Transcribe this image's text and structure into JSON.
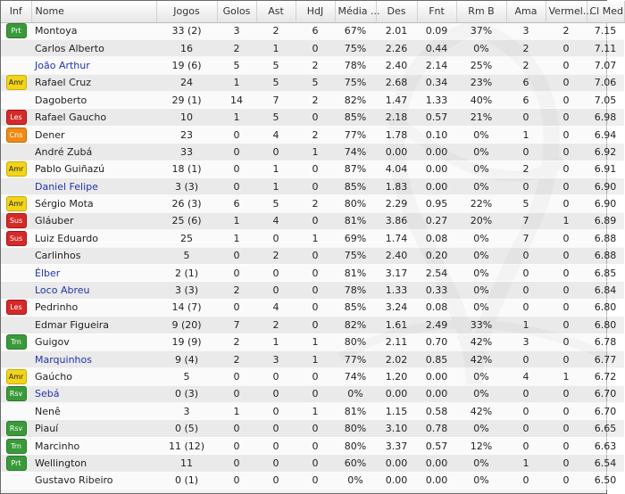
{
  "columns": [
    "Inf",
    "Nome",
    "Jogos",
    "Golos",
    "Ast",
    "HdJ",
    "Média ...",
    "Des",
    "Fnt",
    "Rm B",
    "Ama",
    "Vermel...",
    "Cl Med"
  ],
  "players": [
    {
      "inf": "Prt",
      "nome": "Montoya",
      "link": false,
      "jogos": "33 (2)",
      "golos": "3",
      "ast": "2",
      "hdj": "6",
      "media": "67%",
      "des": "2.01",
      "fnt": "0.09",
      "rmb": "37%",
      "ama": "3",
      "verm": "2",
      "clmed": "7.15"
    },
    {
      "inf": "",
      "nome": "Carlos Alberto",
      "link": false,
      "jogos": "16",
      "golos": "2",
      "ast": "1",
      "hdj": "0",
      "media": "75%",
      "des": "2.26",
      "fnt": "0.44",
      "rmb": "0%",
      "ama": "2",
      "verm": "0",
      "clmed": "7.11"
    },
    {
      "inf": "",
      "nome": "João Arthur",
      "link": true,
      "jogos": "19 (6)",
      "golos": "5",
      "ast": "5",
      "hdj": "2",
      "media": "78%",
      "des": "2.40",
      "fnt": "2.14",
      "rmb": "25%",
      "ama": "2",
      "verm": "0",
      "clmed": "7.07"
    },
    {
      "inf": "Amr",
      "nome": "Rafael Cruz",
      "link": false,
      "jogos": "24",
      "golos": "1",
      "ast": "5",
      "hdj": "5",
      "media": "75%",
      "des": "2.68",
      "fnt": "0.34",
      "rmb": "23%",
      "ama": "6",
      "verm": "0",
      "clmed": "7.06"
    },
    {
      "inf": "",
      "nome": "Dagoberto",
      "link": false,
      "jogos": "29 (1)",
      "golos": "14",
      "ast": "7",
      "hdj": "2",
      "media": "82%",
      "des": "1.47",
      "fnt": "1.33",
      "rmb": "40%",
      "ama": "6",
      "verm": "0",
      "clmed": "7.05"
    },
    {
      "inf": "Les",
      "nome": "Rafael Gaucho",
      "link": false,
      "jogos": "10",
      "golos": "1",
      "ast": "5",
      "hdj": "0",
      "media": "85%",
      "des": "2.18",
      "fnt": "0.57",
      "rmb": "21%",
      "ama": "0",
      "verm": "0",
      "clmed": "6.98"
    },
    {
      "inf": "Cns",
      "nome": "Dener",
      "link": false,
      "jogos": "23",
      "golos": "0",
      "ast": "4",
      "hdj": "2",
      "media": "77%",
      "des": "1.78",
      "fnt": "0.10",
      "rmb": "0%",
      "ama": "1",
      "verm": "0",
      "clmed": "6.94"
    },
    {
      "inf": "",
      "nome": "André Zubá",
      "link": false,
      "jogos": "33",
      "golos": "0",
      "ast": "0",
      "hdj": "1",
      "media": "74%",
      "des": "0.00",
      "fnt": "0.00",
      "rmb": "0%",
      "ama": "0",
      "verm": "0",
      "clmed": "6.92"
    },
    {
      "inf": "Amr",
      "nome": "Pablo Guiñazú",
      "link": false,
      "jogos": "18 (1)",
      "golos": "0",
      "ast": "1",
      "hdj": "0",
      "media": "87%",
      "des": "4.04",
      "fnt": "0.00",
      "rmb": "0%",
      "ama": "2",
      "verm": "0",
      "clmed": "6.91"
    },
    {
      "inf": "",
      "nome": "Daniel Felipe",
      "link": true,
      "jogos": "3 (3)",
      "golos": "0",
      "ast": "1",
      "hdj": "0",
      "media": "85%",
      "des": "1.83",
      "fnt": "0.00",
      "rmb": "0%",
      "ama": "0",
      "verm": "0",
      "clmed": "6.90"
    },
    {
      "inf": "Amr",
      "nome": "Sérgio Mota",
      "link": false,
      "jogos": "26 (3)",
      "golos": "6",
      "ast": "5",
      "hdj": "2",
      "media": "80%",
      "des": "2.29",
      "fnt": "0.95",
      "rmb": "22%",
      "ama": "5",
      "verm": "0",
      "clmed": "6.90"
    },
    {
      "inf": "Sus",
      "nome": "Gláuber",
      "link": false,
      "jogos": "25 (6)",
      "golos": "1",
      "ast": "4",
      "hdj": "0",
      "media": "81%",
      "des": "3.86",
      "fnt": "0.27",
      "rmb": "20%",
      "ama": "7",
      "verm": "1",
      "clmed": "6.89"
    },
    {
      "inf": "Sus",
      "nome": "Luiz Eduardo",
      "link": false,
      "jogos": "25",
      "golos": "1",
      "ast": "0",
      "hdj": "1",
      "media": "69%",
      "des": "1.74",
      "fnt": "0.08",
      "rmb": "0%",
      "ama": "7",
      "verm": "0",
      "clmed": "6.88"
    },
    {
      "inf": "",
      "nome": "Carlinhos",
      "link": false,
      "jogos": "5",
      "golos": "0",
      "ast": "2",
      "hdj": "0",
      "media": "75%",
      "des": "2.40",
      "fnt": "0.20",
      "rmb": "0%",
      "ama": "0",
      "verm": "0",
      "clmed": "6.88"
    },
    {
      "inf": "",
      "nome": "Élber",
      "link": true,
      "jogos": "2 (1)",
      "golos": "0",
      "ast": "0",
      "hdj": "0",
      "media": "81%",
      "des": "3.17",
      "fnt": "2.54",
      "rmb": "0%",
      "ama": "0",
      "verm": "0",
      "clmed": "6.85"
    },
    {
      "inf": "",
      "nome": "Loco Abreu",
      "link": true,
      "jogos": "3 (3)",
      "golos": "2",
      "ast": "0",
      "hdj": "0",
      "media": "78%",
      "des": "1.33",
      "fnt": "0.33",
      "rmb": "0%",
      "ama": "0",
      "verm": "0",
      "clmed": "6.84"
    },
    {
      "inf": "Les",
      "nome": "Pedrinho",
      "link": false,
      "jogos": "14 (7)",
      "golos": "0",
      "ast": "4",
      "hdj": "0",
      "media": "85%",
      "des": "3.24",
      "fnt": "0.08",
      "rmb": "0%",
      "ama": "0",
      "verm": "0",
      "clmed": "6.80"
    },
    {
      "inf": "",
      "nome": "Edmar Figueira",
      "link": false,
      "jogos": "9 (20)",
      "golos": "7",
      "ast": "2",
      "hdj": "0",
      "media": "82%",
      "des": "1.61",
      "fnt": "2.49",
      "rmb": "33%",
      "ama": "1",
      "verm": "0",
      "clmed": "6.80"
    },
    {
      "inf": "Trn",
      "nome": "Guigov",
      "link": false,
      "jogos": "19 (9)",
      "golos": "2",
      "ast": "1",
      "hdj": "1",
      "media": "80%",
      "des": "2.11",
      "fnt": "0.70",
      "rmb": "42%",
      "ama": "3",
      "verm": "0",
      "clmed": "6.78"
    },
    {
      "inf": "",
      "nome": "Marquinhos",
      "link": true,
      "jogos": "9 (4)",
      "golos": "2",
      "ast": "3",
      "hdj": "1",
      "media": "77%",
      "des": "2.02",
      "fnt": "0.85",
      "rmb": "42%",
      "ama": "0",
      "verm": "0",
      "clmed": "6.77"
    },
    {
      "inf": "Amr",
      "nome": "Gaúcho",
      "link": false,
      "jogos": "5",
      "golos": "0",
      "ast": "0",
      "hdj": "0",
      "media": "74%",
      "des": "1.20",
      "fnt": "0.00",
      "rmb": "0%",
      "ama": "4",
      "verm": "1",
      "clmed": "6.72"
    },
    {
      "inf": "Rsv",
      "nome": "Sebá",
      "link": true,
      "jogos": "0 (3)",
      "golos": "0",
      "ast": "0",
      "hdj": "0",
      "media": "0%",
      "des": "0.00",
      "fnt": "0.00",
      "rmb": "0%",
      "ama": "0",
      "verm": "0",
      "clmed": "6.70"
    },
    {
      "inf": "",
      "nome": "Nenê",
      "link": false,
      "jogos": "3",
      "golos": "1",
      "ast": "0",
      "hdj": "1",
      "media": "81%",
      "des": "1.15",
      "fnt": "0.58",
      "rmb": "42%",
      "ama": "0",
      "verm": "0",
      "clmed": "6.70"
    },
    {
      "inf": "Rsv",
      "nome": "Piauí",
      "link": false,
      "jogos": "0 (5)",
      "golos": "0",
      "ast": "0",
      "hdj": "0",
      "media": "80%",
      "des": "3.10",
      "fnt": "0.78",
      "rmb": "0%",
      "ama": "0",
      "verm": "0",
      "clmed": "6.65"
    },
    {
      "inf": "Trn",
      "nome": "Marcinho",
      "link": false,
      "jogos": "11 (12)",
      "golos": "0",
      "ast": "0",
      "hdj": "0",
      "media": "80%",
      "des": "3.37",
      "fnt": "0.57",
      "rmb": "12%",
      "ama": "0",
      "verm": "0",
      "clmed": "6.63"
    },
    {
      "inf": "Prt",
      "nome": "Wellington",
      "link": false,
      "jogos": "11",
      "golos": "0",
      "ast": "0",
      "hdj": "0",
      "media": "60%",
      "des": "0.00",
      "fnt": "0.00",
      "rmb": "0%",
      "ama": "1",
      "verm": "0",
      "clmed": "6.54"
    },
    {
      "inf": "",
      "nome": "Gustavo Ribeiro",
      "link": false,
      "jogos": "0 (1)",
      "golos": "0",
      "ast": "0",
      "hdj": "0",
      "media": "0%",
      "des": "0.00",
      "fnt": "0.00",
      "rmb": "0%",
      "ama": "0",
      "verm": "0",
      "clmed": "6.50"
    }
  ],
  "colors": {
    "link": "#2233aa",
    "green_badge": "#3a9a3a",
    "yellow_badge": "#f2d41a",
    "red_badge": "#d42a2a",
    "orange_badge": "#f08a17"
  }
}
